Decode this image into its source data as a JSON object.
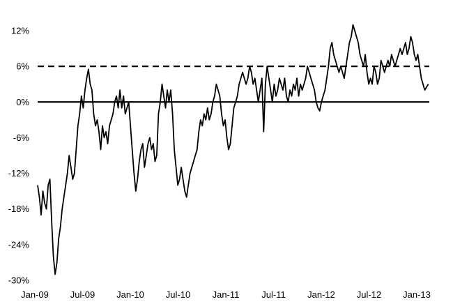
{
  "chart_data": {
    "type": "line",
    "title": "",
    "xlabel": "",
    "ylabel": "",
    "x_ticks": [
      "Jan-09",
      "Jul-09",
      "Jan-10",
      "Jul-10",
      "Jan-11",
      "Jul-11",
      "Jan-12",
      "Jul-12",
      "Jan-13"
    ],
    "y_ticks": [
      "-30%",
      "-24%",
      "-18%",
      "-12%",
      "-6%",
      "0%",
      "6%",
      "12%"
    ],
    "ylim": [
      -30,
      12
    ],
    "xlim": [
      "2009-01-01",
      "2013-04-15"
    ],
    "grid": false,
    "legend": "none",
    "reference_lines": [
      {
        "value": 0,
        "style": "solid"
      },
      {
        "value": 6,
        "style": "dashed"
      }
    ],
    "series": [
      {
        "color": "#000000",
        "points": [
          [
            "2009-01-01",
            -14
          ],
          [
            "2009-01-08",
            -16
          ],
          [
            "2009-01-15",
            -19
          ],
          [
            "2009-01-22",
            -15
          ],
          [
            "2009-01-29",
            -17
          ],
          [
            "2009-02-05",
            -18
          ],
          [
            "2009-02-12",
            -14
          ],
          [
            "2009-02-19",
            -13
          ],
          [
            "2009-02-26",
            -20
          ],
          [
            "2009-03-05",
            -26
          ],
          [
            "2009-03-12",
            -29
          ],
          [
            "2009-03-19",
            -27
          ],
          [
            "2009-03-26",
            -23
          ],
          [
            "2009-04-02",
            -21
          ],
          [
            "2009-04-09",
            -18
          ],
          [
            "2009-04-16",
            -16
          ],
          [
            "2009-04-23",
            -14
          ],
          [
            "2009-04-30",
            -12
          ],
          [
            "2009-05-07",
            -9
          ],
          [
            "2009-05-14",
            -11
          ],
          [
            "2009-05-21",
            -13
          ],
          [
            "2009-05-28",
            -12
          ],
          [
            "2009-06-04",
            -8
          ],
          [
            "2009-06-11",
            -4
          ],
          [
            "2009-06-18",
            -2
          ],
          [
            "2009-06-25",
            1
          ],
          [
            "2009-07-02",
            -1
          ],
          [
            "2009-07-09",
            2
          ],
          [
            "2009-07-16",
            4
          ],
          [
            "2009-07-23",
            5.5
          ],
          [
            "2009-07-30",
            3
          ],
          [
            "2009-08-06",
            2
          ],
          [
            "2009-08-13",
            -2
          ],
          [
            "2009-08-20",
            -4
          ],
          [
            "2009-08-27",
            -3
          ],
          [
            "2009-09-03",
            -5
          ],
          [
            "2009-09-10",
            -8
          ],
          [
            "2009-09-17",
            -4
          ],
          [
            "2009-09-24",
            -6
          ],
          [
            "2009-10-01",
            -5
          ],
          [
            "2009-10-08",
            -7
          ],
          [
            "2009-10-15",
            -4
          ],
          [
            "2009-10-22",
            -3
          ],
          [
            "2009-10-29",
            -2
          ],
          [
            "2009-11-05",
            0
          ],
          [
            "2009-11-12",
            1
          ],
          [
            "2009-11-19",
            -1
          ],
          [
            "2009-11-26",
            2
          ],
          [
            "2009-12-03",
            -1
          ],
          [
            "2009-12-10",
            1
          ],
          [
            "2009-12-17",
            -2
          ],
          [
            "2009-12-24",
            -1
          ],
          [
            "2009-12-31",
            0
          ],
          [
            "2010-01-07",
            -4
          ],
          [
            "2010-01-14",
            -8
          ],
          [
            "2010-01-21",
            -12
          ],
          [
            "2010-01-28",
            -15
          ],
          [
            "2010-02-04",
            -13
          ],
          [
            "2010-02-11",
            -10
          ],
          [
            "2010-02-18",
            -8
          ],
          [
            "2010-02-25",
            -7
          ],
          [
            "2010-03-04",
            -11
          ],
          [
            "2010-03-11",
            -9
          ],
          [
            "2010-03-18",
            -7
          ],
          [
            "2010-03-25",
            -6
          ],
          [
            "2010-04-01",
            -8
          ],
          [
            "2010-04-08",
            -7
          ],
          [
            "2010-04-15",
            -10
          ],
          [
            "2010-04-22",
            -9
          ],
          [
            "2010-04-29",
            -2
          ],
          [
            "2010-05-06",
            0
          ],
          [
            "2010-05-13",
            3
          ],
          [
            "2010-05-20",
            1
          ],
          [
            "2010-05-27",
            -1
          ],
          [
            "2010-06-03",
            2
          ],
          [
            "2010-06-10",
            0
          ],
          [
            "2010-06-17",
            2
          ],
          [
            "2010-06-24",
            -2
          ],
          [
            "2010-07-01",
            -8
          ],
          [
            "2010-07-08",
            -11
          ],
          [
            "2010-07-15",
            -14
          ],
          [
            "2010-07-22",
            -13
          ],
          [
            "2010-07-29",
            -11
          ],
          [
            "2010-08-05",
            -13
          ],
          [
            "2010-08-12",
            -15
          ],
          [
            "2010-08-19",
            -16
          ],
          [
            "2010-08-26",
            -14
          ],
          [
            "2010-09-02",
            -12
          ],
          [
            "2010-09-09",
            -11
          ],
          [
            "2010-09-16",
            -10
          ],
          [
            "2010-09-23",
            -9
          ],
          [
            "2010-09-30",
            -8
          ],
          [
            "2010-10-07",
            -5
          ],
          [
            "2010-10-14",
            -3
          ],
          [
            "2010-10-21",
            -4
          ],
          [
            "2010-10-28",
            -2
          ],
          [
            "2010-11-04",
            -3
          ],
          [
            "2010-11-11",
            -1
          ],
          [
            "2010-11-18",
            -3
          ],
          [
            "2010-11-25",
            -2
          ],
          [
            "2010-12-02",
            0
          ],
          [
            "2010-12-09",
            1
          ],
          [
            "2010-12-16",
            3
          ],
          [
            "2010-12-23",
            2
          ],
          [
            "2010-12-30",
            1
          ],
          [
            "2011-01-06",
            -2
          ],
          [
            "2011-01-13",
            -4
          ],
          [
            "2011-01-20",
            -3
          ],
          [
            "2011-01-27",
            -6
          ],
          [
            "2011-02-03",
            -8
          ],
          [
            "2011-02-10",
            -7
          ],
          [
            "2011-02-17",
            -4
          ],
          [
            "2011-02-24",
            -1
          ],
          [
            "2011-03-03",
            0
          ],
          [
            "2011-03-10",
            1
          ],
          [
            "2011-03-17",
            3
          ],
          [
            "2011-03-24",
            4
          ],
          [
            "2011-03-31",
            5
          ],
          [
            "2011-04-07",
            4
          ],
          [
            "2011-04-14",
            3
          ],
          [
            "2011-04-21",
            4
          ],
          [
            "2011-04-28",
            6
          ],
          [
            "2011-05-05",
            5
          ],
          [
            "2011-05-12",
            3
          ],
          [
            "2011-05-19",
            4
          ],
          [
            "2011-05-26",
            2
          ],
          [
            "2011-06-02",
            0
          ],
          [
            "2011-06-09",
            2
          ],
          [
            "2011-06-16",
            4
          ],
          [
            "2011-06-23",
            -5
          ],
          [
            "2011-06-30",
            3
          ],
          [
            "2011-07-07",
            6
          ],
          [
            "2011-07-14",
            4
          ],
          [
            "2011-07-21",
            2
          ],
          [
            "2011-07-28",
            0
          ],
          [
            "2011-08-04",
            3
          ],
          [
            "2011-08-11",
            1
          ],
          [
            "2011-08-18",
            2
          ],
          [
            "2011-08-25",
            4
          ],
          [
            "2011-09-01",
            3
          ],
          [
            "2011-09-08",
            2
          ],
          [
            "2011-09-15",
            4
          ],
          [
            "2011-09-22",
            1
          ],
          [
            "2011-09-29",
            0
          ],
          [
            "2011-10-06",
            2
          ],
          [
            "2011-10-13",
            1
          ],
          [
            "2011-10-20",
            3
          ],
          [
            "2011-10-27",
            2
          ],
          [
            "2011-11-03",
            4
          ],
          [
            "2011-11-10",
            1
          ],
          [
            "2011-11-17",
            3
          ],
          [
            "2011-11-24",
            2
          ],
          [
            "2011-12-01",
            3
          ],
          [
            "2011-12-08",
            4
          ],
          [
            "2011-12-15",
            6
          ],
          [
            "2011-12-22",
            5
          ],
          [
            "2011-12-29",
            4
          ],
          [
            "2012-01-05",
            3
          ],
          [
            "2012-01-12",
            2
          ],
          [
            "2012-01-19",
            0
          ],
          [
            "2012-01-26",
            -1
          ],
          [
            "2012-02-02",
            -1.5
          ],
          [
            "2012-02-09",
            0
          ],
          [
            "2012-02-16",
            1
          ],
          [
            "2012-02-23",
            2
          ],
          [
            "2012-03-01",
            4
          ],
          [
            "2012-03-08",
            6
          ],
          [
            "2012-03-15",
            9
          ],
          [
            "2012-03-22",
            10
          ],
          [
            "2012-03-29",
            8
          ],
          [
            "2012-04-05",
            7
          ],
          [
            "2012-04-12",
            6
          ],
          [
            "2012-04-19",
            5
          ],
          [
            "2012-04-26",
            6
          ],
          [
            "2012-05-03",
            5
          ],
          [
            "2012-05-10",
            4
          ],
          [
            "2012-05-17",
            6
          ],
          [
            "2012-05-24",
            8
          ],
          [
            "2012-05-31",
            10
          ],
          [
            "2012-06-07",
            11
          ],
          [
            "2012-06-14",
            13
          ],
          [
            "2012-06-21",
            12
          ],
          [
            "2012-06-28",
            11
          ],
          [
            "2012-07-05",
            10
          ],
          [
            "2012-07-12",
            8
          ],
          [
            "2012-07-19",
            7
          ],
          [
            "2012-07-26",
            6
          ],
          [
            "2012-08-02",
            8
          ],
          [
            "2012-08-09",
            5
          ],
          [
            "2012-08-16",
            3
          ],
          [
            "2012-08-23",
            4
          ],
          [
            "2012-08-30",
            3
          ],
          [
            "2012-09-06",
            6
          ],
          [
            "2012-09-13",
            5
          ],
          [
            "2012-09-20",
            3
          ],
          [
            "2012-09-27",
            4
          ],
          [
            "2012-10-04",
            7
          ],
          [
            "2012-10-11",
            6
          ],
          [
            "2012-10-18",
            5
          ],
          [
            "2012-10-25",
            6
          ],
          [
            "2012-11-01",
            7
          ],
          [
            "2012-11-08",
            6
          ],
          [
            "2012-11-15",
            8
          ],
          [
            "2012-11-22",
            7
          ],
          [
            "2012-11-29",
            6
          ],
          [
            "2012-12-06",
            7
          ],
          [
            "2012-12-13",
            8
          ],
          [
            "2012-12-20",
            9
          ],
          [
            "2012-12-27",
            8
          ],
          [
            "2013-01-03",
            9
          ],
          [
            "2013-01-10",
            10
          ],
          [
            "2013-01-17",
            8
          ],
          [
            "2013-01-24",
            9
          ],
          [
            "2013-01-31",
            11
          ],
          [
            "2013-02-07",
            10
          ],
          [
            "2013-02-14",
            8
          ],
          [
            "2013-02-21",
            7
          ],
          [
            "2013-02-28",
            8
          ],
          [
            "2013-03-07",
            6
          ],
          [
            "2013-03-14",
            4
          ],
          [
            "2013-03-21",
            3
          ],
          [
            "2013-03-28",
            2
          ],
          [
            "2013-04-04",
            2.5
          ],
          [
            "2013-04-11",
            3
          ]
        ]
      }
    ]
  }
}
